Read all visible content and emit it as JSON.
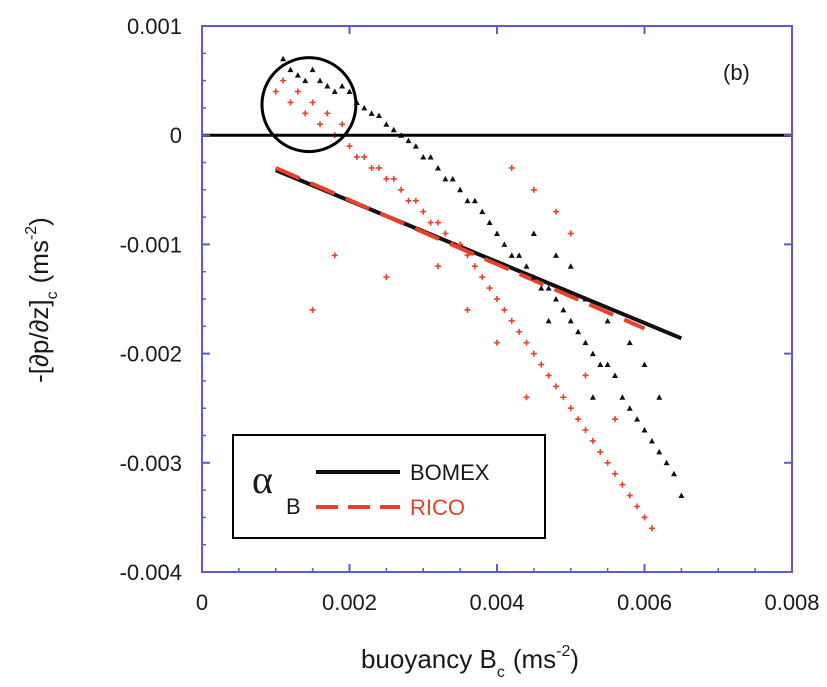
{
  "chart_data": {
    "type": "scatter",
    "panel_label": "(b)",
    "xlabel": {
      "main": "buoyancy B",
      "sub": "c",
      "unit_pre": "(ms",
      "unit_sup": "-2",
      "unit_post": ")"
    },
    "ylabel": {
      "main": "-[∂p/∂z]",
      "sub": "c",
      "unit_pre": "(ms",
      "unit_sup": "-2",
      "unit_post": ")"
    },
    "xlim": [
      0,
      0.008
    ],
    "ylim": [
      -0.004,
      0.001
    ],
    "x_ticks": [
      0,
      0.002,
      0.004,
      0.006,
      0.008
    ],
    "x_tick_labels": [
      "0",
      "0.002",
      "0.004",
      "0.006",
      "0.008"
    ],
    "y_ticks": [
      0.001,
      0,
      -0.001,
      -0.002,
      -0.003,
      -0.004
    ],
    "y_tick_labels": [
      "0.001",
      "0",
      "-0.001",
      "-0.002",
      "-0.003",
      "-0.004"
    ],
    "grid": false,
    "legend": {
      "position": "bottom-left",
      "symbol_main": "α",
      "symbol_sub": "B",
      "entries": [
        {
          "name": "BOMEX",
          "color": "#111111",
          "style": "solid"
        },
        {
          "name": "RICO",
          "color": "#e8402a",
          "style": "dashed"
        }
      ]
    },
    "reference_line": {
      "y": 0
    },
    "annotations": [
      {
        "type": "circle",
        "cx": 0.00145,
        "cy": 0.00028,
        "r": 0.00043
      }
    ],
    "fit_lines": [
      {
        "series": "BOMEX",
        "color": "#111111",
        "style": "solid",
        "x": [
          0.001,
          0.0065
        ],
        "y": [
          -0.00032,
          -0.00186
        ]
      },
      {
        "series": "RICO",
        "color": "#e8402a",
        "style": "dashed",
        "x": [
          0.001,
          0.006
        ],
        "y": [
          -0.0003,
          -0.00177
        ]
      }
    ],
    "series": [
      {
        "name": "BOMEX",
        "color": "#111111",
        "marker": "triangle",
        "points": [
          [
            0.0011,
            0.0007
          ],
          [
            0.0012,
            0.0006
          ],
          [
            0.0013,
            0.00055
          ],
          [
            0.0014,
            0.0005
          ],
          [
            0.0015,
            0.0006
          ],
          [
            0.0016,
            0.0005
          ],
          [
            0.0017,
            0.00045
          ],
          [
            0.0018,
            0.0004
          ],
          [
            0.0019,
            0.00045
          ],
          [
            0.002,
            0.0004
          ],
          [
            0.0021,
            0.0003
          ],
          [
            0.0022,
            0.00025
          ],
          [
            0.0023,
            0.0002
          ],
          [
            0.0024,
            0.00018
          ],
          [
            0.0025,
            0.0001
          ],
          [
            0.0026,
            5e-05
          ],
          [
            0.0027,
            0.0
          ],
          [
            0.0028,
            -5e-05
          ],
          [
            0.0029,
            -0.0001
          ],
          [
            0.003,
            -0.0002
          ],
          [
            0.0031,
            -0.0002
          ],
          [
            0.0032,
            -0.0003
          ],
          [
            0.0033,
            -0.0004
          ],
          [
            0.0034,
            -0.0004
          ],
          [
            0.0035,
            -0.0005
          ],
          [
            0.0036,
            -0.0006
          ],
          [
            0.0037,
            -0.0006
          ],
          [
            0.0038,
            -0.0007
          ],
          [
            0.0039,
            -0.0008
          ],
          [
            0.004,
            -0.0009
          ],
          [
            0.0041,
            -0.001
          ],
          [
            0.0042,
            -0.0011
          ],
          [
            0.0043,
            -0.0011
          ],
          [
            0.0044,
            -0.0012
          ],
          [
            0.0045,
            -0.0013
          ],
          [
            0.0046,
            -0.0014
          ],
          [
            0.0047,
            -0.0014
          ],
          [
            0.0048,
            -0.0015
          ],
          [
            0.0049,
            -0.0016
          ],
          [
            0.005,
            -0.0017
          ],
          [
            0.0051,
            -0.0018
          ],
          [
            0.0052,
            -0.0019
          ],
          [
            0.0053,
            -0.002
          ],
          [
            0.0054,
            -0.0021
          ],
          [
            0.0055,
            -0.0021
          ],
          [
            0.0056,
            -0.0022
          ],
          [
            0.0057,
            -0.0024
          ],
          [
            0.0058,
            -0.0025
          ],
          [
            0.0059,
            -0.0026
          ],
          [
            0.006,
            -0.0027
          ],
          [
            0.0061,
            -0.0028
          ],
          [
            0.0062,
            -0.0029
          ],
          [
            0.0063,
            -0.003
          ],
          [
            0.0064,
            -0.0031
          ],
          [
            0.0065,
            -0.0033
          ],
          [
            0.0045,
            -0.0009
          ],
          [
            0.0048,
            -0.0011
          ],
          [
            0.005,
            -0.0012
          ],
          [
            0.0052,
            -0.0015
          ],
          [
            0.0055,
            -0.0017
          ],
          [
            0.0058,
            -0.0019
          ],
          [
            0.006,
            -0.0021
          ],
          [
            0.0062,
            -0.0024
          ],
          [
            0.0047,
            -0.0017
          ],
          [
            0.0053,
            -0.0024
          ]
        ]
      },
      {
        "name": "RICO",
        "color": "#e8402a",
        "marker": "plus",
        "points": [
          [
            0.001,
            0.0004
          ],
          [
            0.0011,
            0.0005
          ],
          [
            0.0012,
            0.0003
          ],
          [
            0.0013,
            0.0004
          ],
          [
            0.0014,
            0.0002
          ],
          [
            0.0015,
            0.0003
          ],
          [
            0.0016,
            0.0001
          ],
          [
            0.0017,
            0.0002
          ],
          [
            0.0018,
            0.0
          ],
          [
            0.0019,
            0.0001
          ],
          [
            0.002,
            -0.0001
          ],
          [
            0.0021,
            -0.0002
          ],
          [
            0.0022,
            -0.0002
          ],
          [
            0.0023,
            -0.0003
          ],
          [
            0.0024,
            -0.0003
          ],
          [
            0.0025,
            -0.0004
          ],
          [
            0.0026,
            -0.0004
          ],
          [
            0.0027,
            -0.0005
          ],
          [
            0.0028,
            -0.0006
          ],
          [
            0.0029,
            -0.0006
          ],
          [
            0.003,
            -0.0007
          ],
          [
            0.0031,
            -0.0008
          ],
          [
            0.0032,
            -0.0008
          ],
          [
            0.0033,
            -0.0009
          ],
          [
            0.0034,
            -0.001
          ],
          [
            0.0035,
            -0.001
          ],
          [
            0.0036,
            -0.0011
          ],
          [
            0.0037,
            -0.0012
          ],
          [
            0.0038,
            -0.0013
          ],
          [
            0.0039,
            -0.0014
          ],
          [
            0.004,
            -0.0015
          ],
          [
            0.0041,
            -0.0016
          ],
          [
            0.0042,
            -0.0017
          ],
          [
            0.0043,
            -0.0018
          ],
          [
            0.0044,
            -0.0019
          ],
          [
            0.0045,
            -0.002
          ],
          [
            0.0046,
            -0.0021
          ],
          [
            0.0047,
            -0.0022
          ],
          [
            0.0048,
            -0.0023
          ],
          [
            0.0049,
            -0.0024
          ],
          [
            0.005,
            -0.0025
          ],
          [
            0.0051,
            -0.0026
          ],
          [
            0.0052,
            -0.0027
          ],
          [
            0.0053,
            -0.0028
          ],
          [
            0.0054,
            -0.0029
          ],
          [
            0.0055,
            -0.003
          ],
          [
            0.0056,
            -0.0031
          ],
          [
            0.0057,
            -0.0032
          ],
          [
            0.0058,
            -0.0033
          ],
          [
            0.0059,
            -0.0034
          ],
          [
            0.006,
            -0.0035
          ],
          [
            0.0061,
            -0.0036
          ],
          [
            0.0042,
            -0.0003
          ],
          [
            0.0045,
            -0.0005
          ],
          [
            0.0048,
            -0.0007
          ],
          [
            0.005,
            -0.0009
          ],
          [
            0.0025,
            -0.0013
          ],
          [
            0.0018,
            -0.0011
          ],
          [
            0.0015,
            -0.0016
          ],
          [
            0.0036,
            -0.0016
          ],
          [
            0.004,
            -0.0019
          ],
          [
            0.0044,
            -0.0024
          ],
          [
            0.0052,
            -0.0022
          ],
          [
            0.0056,
            -0.0026
          ],
          [
            0.0032,
            -0.0012
          ]
        ]
      }
    ]
  }
}
